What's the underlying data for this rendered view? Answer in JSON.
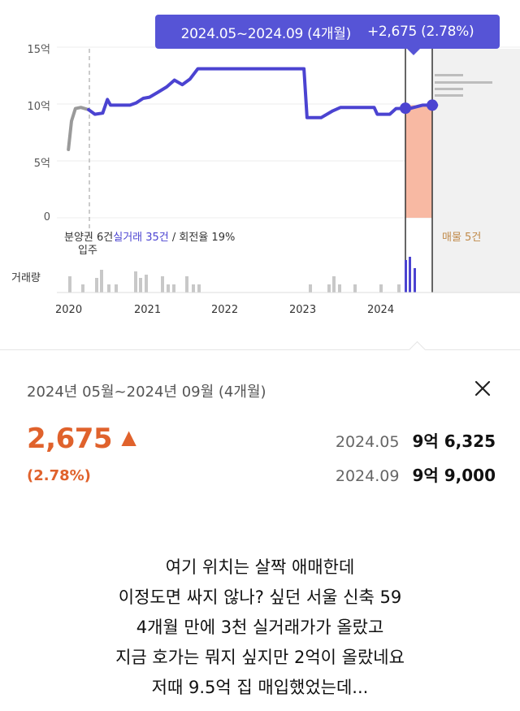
{
  "tooltip": {
    "period": "2024.05~2024.09 (4개월)",
    "change": "+2,675 (2.78%)"
  },
  "y_axis": [
    "15억",
    "10억",
    "5억",
    "0"
  ],
  "captions": {
    "presale": "분양권 6건",
    "trades": "실거래 35건",
    "turnover": " / 회전율 19%",
    "move_in": "입주",
    "listings": "매물 5건",
    "volume": "거래량"
  },
  "x_axis": [
    "2020",
    "2021",
    "2022",
    "2023",
    "2024"
  ],
  "colors": {
    "accent": "#5654d6",
    "presale": "#9a9a9a",
    "highlight": "#f8b9a3",
    "up": "#e0622c",
    "listing": "#c08a4a"
  },
  "chart_data": {
    "type": "line",
    "ylim": [
      0,
      15
    ],
    "y_unit": "억",
    "presale_series": [
      [
        2019.96,
        6
      ],
      [
        2020.0,
        8.5
      ],
      [
        2020.05,
        9.6
      ],
      [
        2020.12,
        9.7
      ],
      [
        2020.22,
        9.5
      ]
    ],
    "trade_series": [
      [
        2020.22,
        9.5
      ],
      [
        2020.3,
        9.1
      ],
      [
        2020.4,
        9.2
      ],
      [
        2020.46,
        10.4
      ],
      [
        2020.5,
        9.9
      ],
      [
        2020.62,
        9.9
      ],
      [
        2020.75,
        9.9
      ],
      [
        2020.83,
        10.1
      ],
      [
        2020.92,
        10.5
      ],
      [
        2021.0,
        10.6
      ],
      [
        2021.1,
        11.0
      ],
      [
        2021.22,
        11.5
      ],
      [
        2021.32,
        12.1
      ],
      [
        2021.42,
        11.7
      ],
      [
        2021.52,
        12.2
      ],
      [
        2021.62,
        13.1
      ],
      [
        2021.8,
        13.1
      ],
      [
        2022.2,
        13.1
      ],
      [
        2022.65,
        13.1
      ],
      [
        2022.98,
        13.1
      ],
      [
        2023.02,
        8.8
      ],
      [
        2023.2,
        8.8
      ],
      [
        2023.35,
        9.4
      ],
      [
        2023.45,
        9.7
      ],
      [
        2023.7,
        9.7
      ],
      [
        2023.88,
        9.7
      ],
      [
        2023.92,
        9.1
      ],
      [
        2024.08,
        9.1
      ],
      [
        2024.16,
        9.6
      ],
      [
        2024.35,
        9.63
      ],
      [
        2024.5,
        9.9
      ],
      [
        2024.68,
        9.9
      ]
    ],
    "selected": {
      "start": {
        "label": "2024.05",
        "value": "9억 6,325"
      },
      "end": {
        "label": "2024.09",
        "value": "9억 9,000"
      }
    },
    "listing_range": {
      "min": 10.8,
      "max": 12
    }
  },
  "detail": {
    "title": "2024년 05월~2024년 09월 (4개월)",
    "change": "2,675",
    "change_arrow": "▲",
    "change_pct": "(2.78%)",
    "prices": [
      {
        "date": "2024.05",
        "price": "9억 6,325"
      },
      {
        "date": "2024.09",
        "price": "9억 9,000"
      }
    ]
  },
  "caption_lines": [
    "여기 위치는 살짝 애매한데",
    "이정도면 싸지 않나? 싶던 서울 신축 59",
    "4개월 만에 3천 실거래가가 올랐고",
    "지금 호가는 뭐지 싶지만 2억이 올랐네요",
    "저때 9.5억 집 매입했었는데..."
  ]
}
